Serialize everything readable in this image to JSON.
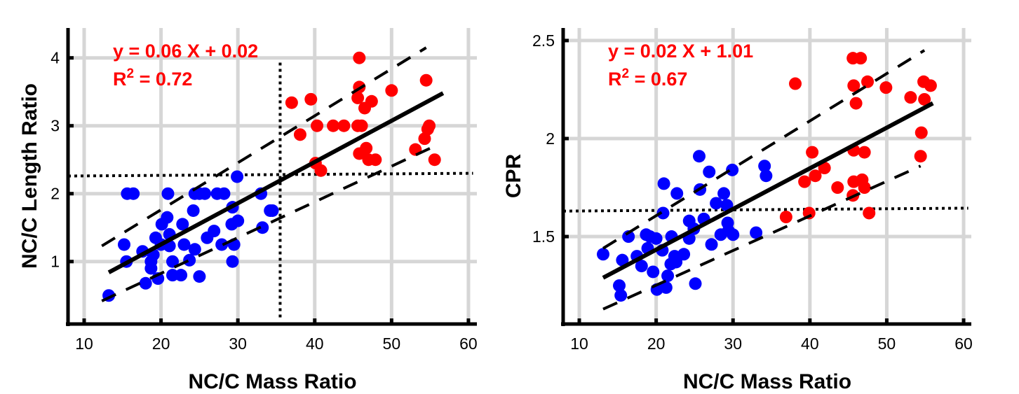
{
  "chart_data": [
    {
      "type": "scatter",
      "title": "",
      "xlabel": "NC/C Mass Ratio",
      "ylabel": "NC/C Length Ratio",
      "xlim": [
        7.9,
        61.1
      ],
      "ylim": [
        0.08,
        4.44
      ],
      "xticks": [
        10,
        20,
        30,
        40,
        50,
        60
      ],
      "xtick_labels": [
        "10",
        "20",
        "30",
        "40",
        "50",
        "60"
      ],
      "yticks": [
        1,
        2,
        3,
        4
      ],
      "ytick_labels": [
        "1",
        "2",
        "3",
        "4"
      ],
      "grid": true,
      "equation": "y = 0.06 X + 0.02",
      "r2_prefix": "R",
      "r2_sup": "2",
      "r2_value": " = 0.72",
      "colors": {
        "group1": "#0000ff",
        "group2": "#ff0000",
        "fit": "#000000",
        "annotation": "#ff0000"
      },
      "series": [
        {
          "name": "blue",
          "color": "#0000ff",
          "points": [
            [
              13.2,
              0.5
            ],
            [
              15.2,
              1.25
            ],
            [
              15.5,
              1.0
            ],
            [
              15.6,
              2.0
            ],
            [
              16.4,
              2.0
            ],
            [
              17.6,
              1.15
            ],
            [
              18.0,
              0.68
            ],
            [
              18.7,
              0.9
            ],
            [
              18.7,
              1.0
            ],
            [
              19.0,
              1.1
            ],
            [
              19.3,
              1.35
            ],
            [
              19.6,
              0.75
            ],
            [
              20.0,
              1.25
            ],
            [
              20.1,
              1.55
            ],
            [
              20.8,
              1.65
            ],
            [
              20.9,
              2.0
            ],
            [
              21.1,
              1.4
            ],
            [
              21.1,
              1.23
            ],
            [
              21.5,
              1.0
            ],
            [
              21.5,
              0.8
            ],
            [
              22.6,
              0.8
            ],
            [
              22.8,
              1.55
            ],
            [
              23.0,
              1.25
            ],
            [
              23.7,
              1.02
            ],
            [
              24.4,
              1.18
            ],
            [
              24.2,
              1.75
            ],
            [
              24.4,
              2.0
            ],
            [
              25.0,
              0.78
            ],
            [
              25.0,
              2.0
            ],
            [
              25.7,
              2.0
            ],
            [
              26.0,
              1.35
            ],
            [
              26.9,
              1.45
            ],
            [
              27.3,
              2.0
            ],
            [
              27.9,
              1.25
            ],
            [
              28.2,
              2.0
            ],
            [
              29.2,
              1.55
            ],
            [
              29.3,
              1.8
            ],
            [
              29.3,
              1.0
            ],
            [
              29.5,
              1.25
            ],
            [
              30.0,
              1.6
            ],
            [
              29.9,
              2.25
            ],
            [
              33.0,
              2.0
            ],
            [
              33.2,
              1.5
            ],
            [
              34.2,
              1.75
            ],
            [
              34.5,
              1.75
            ]
          ]
        },
        {
          "name": "red",
          "color": "#ff0000",
          "points": [
            [
              37.0,
              3.34
            ],
            [
              38.1,
              2.87
            ],
            [
              39.5,
              3.39
            ],
            [
              40.3,
              3.0
            ],
            [
              40.1,
              2.45
            ],
            [
              40.8,
              2.34
            ],
            [
              42.4,
              3.0
            ],
            [
              43.8,
              3.0
            ],
            [
              45.6,
              3.0
            ],
            [
              46.1,
              3.0
            ],
            [
              45.8,
              4.0
            ],
            [
              45.8,
              3.57
            ],
            [
              45.6,
              3.41
            ],
            [
              46.5,
              3.26
            ],
            [
              47.4,
              3.36
            ],
            [
              45.8,
              2.59
            ],
            [
              46.7,
              2.67
            ],
            [
              47.0,
              2.5
            ],
            [
              47.9,
              2.5
            ],
            [
              50.0,
              3.52
            ],
            [
              53.1,
              2.65
            ],
            [
              54.3,
              2.81
            ],
            [
              54.7,
              2.95
            ],
            [
              54.9,
              3.0
            ],
            [
              54.5,
              3.67
            ],
            [
              55.6,
              2.5
            ]
          ]
        }
      ],
      "fit_line": [
        [
          13.2,
          0.84
        ],
        [
          56.7,
          3.48
        ]
      ],
      "upper_band": [
        [
          12.3,
          1.23
        ],
        [
          54.5,
          4.15
        ]
      ],
      "lower_band": [
        [
          12.3,
          0.42
        ],
        [
          55.8,
          2.71
        ]
      ],
      "threshold_x": {
        "x": 35.5,
        "y_range": [
          0.08,
          3.93
        ]
      },
      "threshold_y": {
        "x_range": [
          7.9,
          60.6
        ],
        "y": [
          2.26,
          2.3
        ]
      }
    },
    {
      "type": "scatter",
      "title": "",
      "xlabel": "NC/C Mass Ratio",
      "ylabel": "CPR",
      "xlim": [
        7.9,
        61.0
      ],
      "ylim": [
        1.054,
        2.564
      ],
      "xticks": [
        10,
        20,
        30,
        40,
        50,
        60
      ],
      "xtick_labels": [
        "10",
        "20",
        "30",
        "40",
        "50",
        "60"
      ],
      "yticks": [
        1.5,
        2,
        2.5
      ],
      "ytick_labels": [
        "1.5",
        "2",
        "2.5"
      ],
      "grid": true,
      "equation": "y = 0.02 X + 1.01",
      "r2_prefix": "R",
      "r2_sup": "2",
      "r2_value": " = 0.67",
      "colors": {
        "group1": "#0000ff",
        "group2": "#ff0000",
        "fit": "#000000",
        "annotation": "#ff0000"
      },
      "series": [
        {
          "name": "blue",
          "color": "#0000ff",
          "points": [
            [
              25.6,
              1.91
            ],
            [
              26.9,
              1.83
            ],
            [
              29.9,
              1.84
            ],
            [
              34.1,
              1.86
            ],
            [
              34.3,
              1.81
            ],
            [
              21.0,
              1.77
            ],
            [
              22.7,
              1.72
            ],
            [
              25.7,
              1.74
            ],
            [
              28.8,
              1.72
            ],
            [
              27.8,
              1.67
            ],
            [
              29.2,
              1.66
            ],
            [
              20.9,
              1.62
            ],
            [
              24.3,
              1.58
            ],
            [
              26.2,
              1.59
            ],
            [
              29.3,
              1.57
            ],
            [
              24.9,
              1.54
            ],
            [
              28.4,
              1.51
            ],
            [
              30.0,
              1.51
            ],
            [
              29.4,
              1.53
            ],
            [
              33.0,
              1.52
            ],
            [
              24.3,
              1.49
            ],
            [
              16.4,
              1.5
            ],
            [
              18.7,
              1.51
            ],
            [
              20.0,
              1.49
            ],
            [
              22.0,
              1.5
            ],
            [
              27.2,
              1.46
            ],
            [
              18.9,
              1.44
            ],
            [
              20.8,
              1.43
            ],
            [
              13.1,
              1.41
            ],
            [
              17.5,
              1.4
            ],
            [
              15.6,
              1.38
            ],
            [
              22.4,
              1.4
            ],
            [
              23.6,
              1.41
            ],
            [
              21.9,
              1.36
            ],
            [
              18.1,
              1.35
            ],
            [
              19.6,
              1.32
            ],
            [
              21.5,
              1.3
            ],
            [
              15.2,
              1.25
            ],
            [
              15.4,
              1.2
            ],
            [
              20.1,
              1.23
            ],
            [
              21.3,
              1.24
            ],
            [
              25.1,
              1.26
            ],
            [
              19.2,
              1.5
            ],
            [
              22.6,
              1.37
            ]
          ]
        },
        {
          "name": "red",
          "color": "#ff0000",
          "points": [
            [
              38.1,
              2.28
            ],
            [
              45.6,
              2.41
            ],
            [
              46.6,
              2.41
            ],
            [
              45.7,
              2.27
            ],
            [
              47.5,
              2.29
            ],
            [
              46.0,
              2.18
            ],
            [
              49.9,
              2.26
            ],
            [
              53.1,
              2.21
            ],
            [
              54.8,
              2.29
            ],
            [
              55.7,
              2.27
            ],
            [
              54.9,
              2.2
            ],
            [
              54.5,
              2.03
            ],
            [
              54.4,
              1.91
            ],
            [
              40.3,
              1.93
            ],
            [
              45.7,
              1.94
            ],
            [
              47.1,
              1.93
            ],
            [
              41.9,
              1.85
            ],
            [
              40.7,
              1.81
            ],
            [
              39.3,
              1.78
            ],
            [
              43.6,
              1.75
            ],
            [
              45.7,
              1.78
            ],
            [
              46.8,
              1.79
            ],
            [
              47.1,
              1.75
            ],
            [
              45.6,
              1.71
            ],
            [
              36.9,
              1.6
            ],
            [
              39.9,
              1.62
            ],
            [
              47.7,
              1.62
            ]
          ]
        }
      ],
      "fit_line": [
        [
          13.1,
          1.29
        ],
        [
          56.0,
          2.18
        ]
      ],
      "upper_band": [
        [
          13.1,
          1.44
        ],
        [
          54.9,
          2.45
        ]
      ],
      "lower_band": [
        [
          13.1,
          1.13
        ],
        [
          54.4,
          1.86
        ]
      ],
      "threshold_y": {
        "x_range": [
          7.9,
          60.6
        ],
        "y": [
          1.63,
          1.645
        ]
      }
    }
  ]
}
